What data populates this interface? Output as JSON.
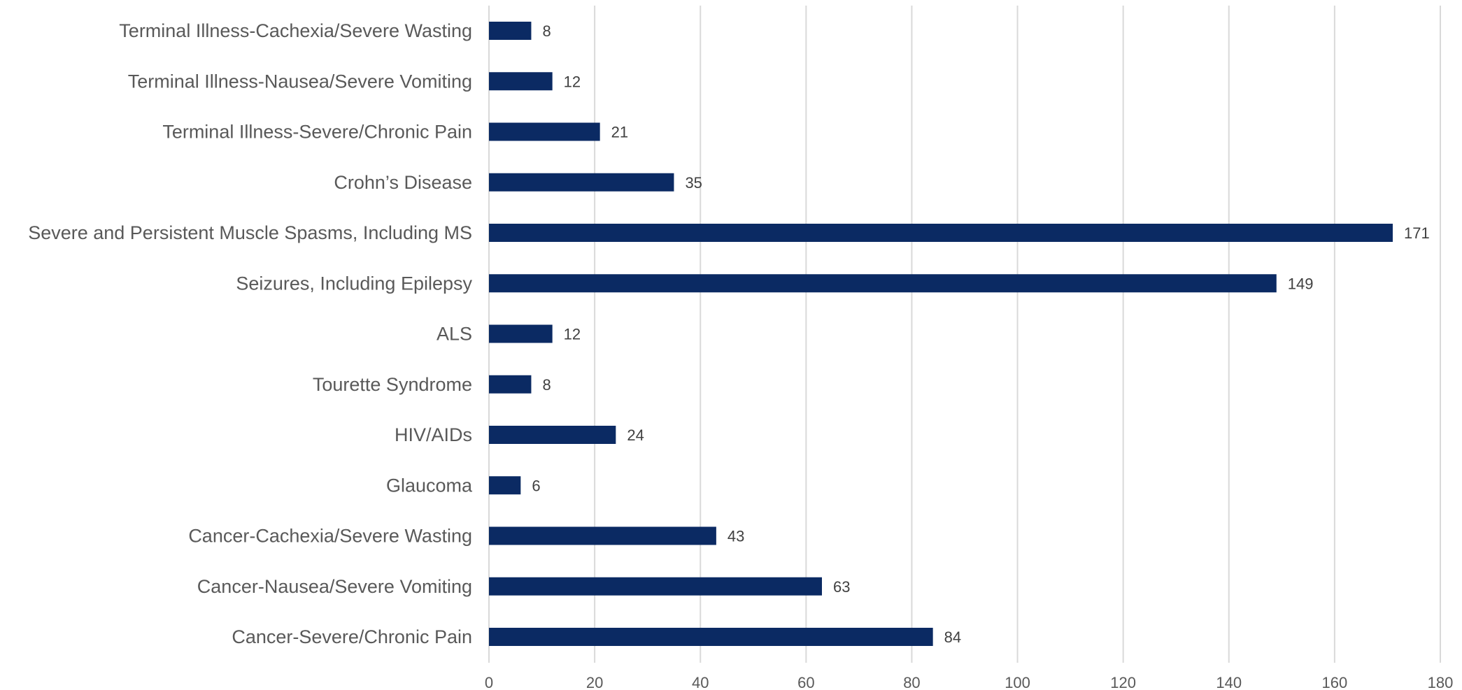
{
  "chart_data": {
    "type": "bar",
    "orientation": "horizontal",
    "title": "",
    "xlabel": "",
    "ylabel": "",
    "categories": [
      "Terminal Illness-Cachexia/Severe Wasting",
      "Terminal Illness-Nausea/Severe Vomiting",
      "Terminal Illness-Severe/Chronic Pain",
      "Crohn’s Disease",
      "Severe and Persistent Muscle Spasms, Including MS",
      "Seizures, Including Epilepsy",
      "ALS",
      "Tourette Syndrome",
      "HIV/AIDs",
      "Glaucoma",
      "Cancer-Cachexia/Severe Wasting",
      "Cancer-Nausea/Severe Vomiting",
      "Cancer-Severe/Chronic Pain"
    ],
    "values": [
      8,
      12,
      21,
      35,
      171,
      149,
      12,
      8,
      24,
      6,
      43,
      63,
      84
    ],
    "xlim": [
      0,
      180
    ],
    "x_ticks": [
      "0",
      "20",
      "40",
      "60",
      "80",
      "100",
      "120",
      "140",
      "160",
      "180"
    ],
    "grid": "vertical",
    "legend": "none",
    "data_labels": true,
    "bar_color": "#0b2a63"
  }
}
